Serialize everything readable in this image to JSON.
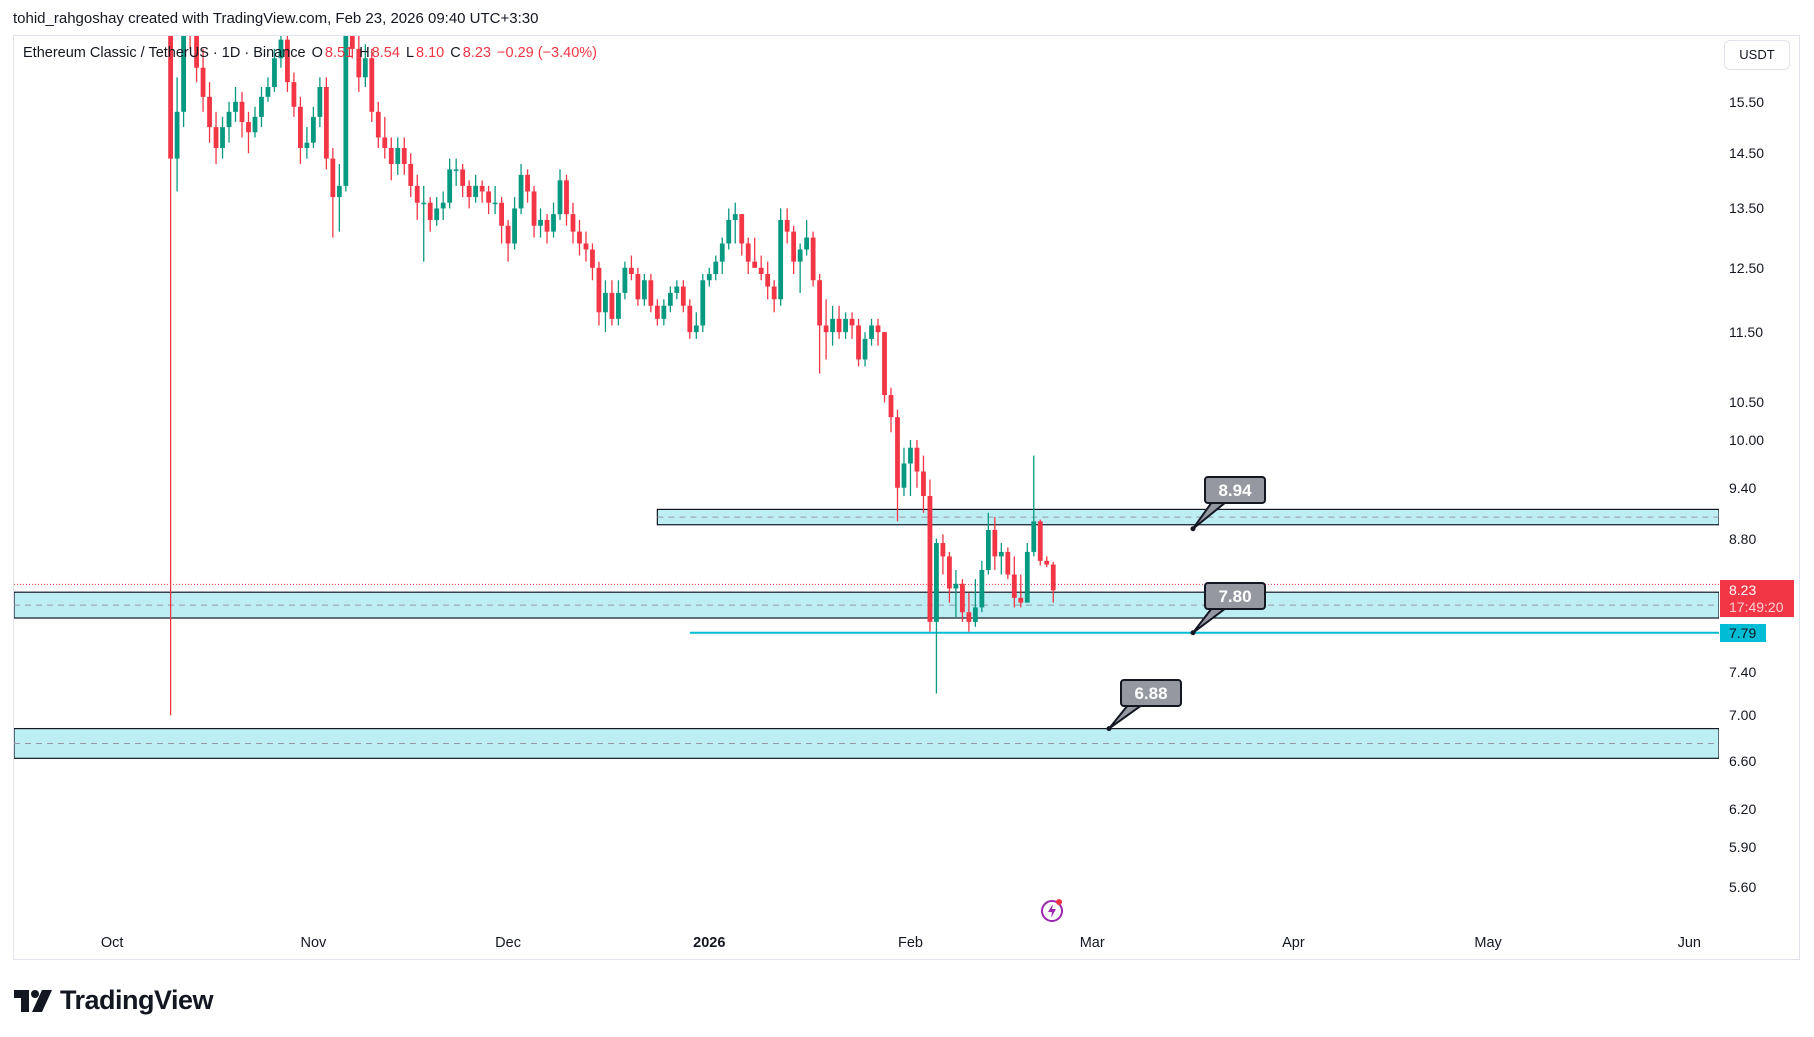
{
  "attribution": "tohid_rahgoshay created with TradingView.com, Feb 23, 2026 09:40 UTC+3:30",
  "legend": {
    "symbol": "Ethereum Classic / TetherUS · 1D · Binance",
    "o_label": "O",
    "o": "8.51",
    "h_label": "H",
    "h": "8.54",
    "l_label": "L",
    "l": "8.10",
    "c_label": "C",
    "c": "8.23",
    "change": "−0.29 (−3.40%)"
  },
  "currency_button": "USDT",
  "current_price": {
    "price": "8.23",
    "countdown": "17:49:20"
  },
  "level_label": "7.79",
  "logo_text": "TradingView",
  "colors": {
    "up": "#089981",
    "down": "#f23645",
    "zone_fill": "#b2ebf2",
    "level_line": "#00bcd4",
    "callout": "#9598a1"
  },
  "icons": [
    "flash-icon",
    "tradingview-logo-icon"
  ],
  "chart_data": {
    "type": "candlestick",
    "y_scale": "log",
    "ylim": [
      5.3,
      17.0
    ],
    "grid": false,
    "y_ticks": [
      "15.50",
      "14.50",
      "13.50",
      "12.50",
      "11.50",
      "10.50",
      "10.00",
      "9.40",
      "8.80",
      "7.40",
      "7.00",
      "6.60",
      "6.20",
      "5.90",
      "5.60"
    ],
    "x_ticks": [
      {
        "label": "Oct",
        "date": "2025-10-01",
        "bold": false
      },
      {
        "label": "Nov",
        "date": "2025-11-01",
        "bold": false
      },
      {
        "label": "Dec",
        "date": "2025-12-01",
        "bold": false
      },
      {
        "label": "2026",
        "date": "2026-01-01",
        "bold": true
      },
      {
        "label": "Feb",
        "date": "2026-02-01",
        "bold": false
      },
      {
        "label": "Mar",
        "date": "2026-03-01",
        "bold": false
      },
      {
        "label": "Apr",
        "date": "2026-04-01",
        "bold": false
      },
      {
        "label": "May",
        "date": "2026-05-01",
        "bold": false
      },
      {
        "label": "Jun",
        "date": "2026-06-01",
        "bold": false
      }
    ],
    "candles": [
      [
        "2025-10-10",
        19.0,
        19.6,
        7.0,
        14.4
      ],
      [
        "2025-10-11",
        14.4,
        16.0,
        13.8,
        15.3
      ],
      [
        "2025-10-12",
        15.3,
        17.6,
        15.0,
        17.2
      ],
      [
        "2025-10-13",
        17.2,
        17.8,
        16.6,
        17.0
      ],
      [
        "2025-10-14",
        17.0,
        17.3,
        15.9,
        16.2
      ],
      [
        "2025-10-15",
        16.2,
        16.6,
        15.3,
        15.6
      ],
      [
        "2025-10-16",
        15.6,
        15.9,
        14.7,
        15.0
      ],
      [
        "2025-10-17",
        15.0,
        15.3,
        14.3,
        14.6
      ],
      [
        "2025-10-18",
        14.6,
        15.2,
        14.4,
        15.0
      ],
      [
        "2025-10-19",
        15.0,
        15.5,
        14.7,
        15.3
      ],
      [
        "2025-10-20",
        15.3,
        15.8,
        15.1,
        15.5
      ],
      [
        "2025-10-21",
        15.5,
        15.7,
        14.8,
        15.1
      ],
      [
        "2025-10-22",
        15.1,
        15.3,
        14.5,
        14.9
      ],
      [
        "2025-10-23",
        14.9,
        15.4,
        14.8,
        15.2
      ],
      [
        "2025-10-24",
        15.2,
        15.8,
        15.0,
        15.6
      ],
      [
        "2025-10-25",
        15.6,
        16.0,
        15.5,
        15.8
      ],
      [
        "2025-10-26",
        15.8,
        16.6,
        15.7,
        16.4
      ],
      [
        "2025-10-27",
        16.4,
        17.1,
        16.2,
        16.8
      ],
      [
        "2025-10-28",
        16.8,
        17.0,
        15.7,
        15.9
      ],
      [
        "2025-10-29",
        15.9,
        16.1,
        15.2,
        15.4
      ],
      [
        "2025-10-30",
        15.4,
        15.6,
        14.3,
        14.6
      ],
      [
        "2025-10-31",
        14.6,
        15.0,
        14.4,
        14.7
      ],
      [
        "2025-11-01",
        14.7,
        15.4,
        14.6,
        15.2
      ],
      [
        "2025-11-02",
        15.2,
        16.0,
        15.0,
        15.8
      ],
      [
        "2025-11-03",
        15.8,
        16.0,
        14.2,
        14.4
      ],
      [
        "2025-11-04",
        14.4,
        14.6,
        13.0,
        13.7
      ],
      [
        "2025-11-05",
        13.7,
        14.3,
        13.1,
        13.9
      ],
      [
        "2025-11-06",
        13.9,
        17.6,
        13.8,
        17.3
      ],
      [
        "2025-11-07",
        17.3,
        17.8,
        16.4,
        16.6
      ],
      [
        "2025-11-08",
        16.6,
        16.9,
        15.7,
        16.0
      ],
      [
        "2025-11-09",
        16.0,
        16.7,
        15.8,
        16.4
      ],
      [
        "2025-11-10",
        16.4,
        16.6,
        15.1,
        15.3
      ],
      [
        "2025-11-11",
        15.3,
        15.5,
        14.6,
        14.8
      ],
      [
        "2025-11-12",
        14.8,
        15.2,
        14.4,
        14.6
      ],
      [
        "2025-11-13",
        14.6,
        14.8,
        14.0,
        14.3
      ],
      [
        "2025-11-14",
        14.3,
        14.8,
        14.1,
        14.6
      ],
      [
        "2025-11-15",
        14.6,
        14.8,
        14.1,
        14.3
      ],
      [
        "2025-11-16",
        14.3,
        14.5,
        13.7,
        13.9
      ],
      [
        "2025-11-17",
        13.9,
        14.1,
        13.3,
        13.6
      ],
      [
        "2025-11-18",
        13.6,
        13.9,
        12.6,
        13.6
      ],
      [
        "2025-11-19",
        13.6,
        13.7,
        13.1,
        13.3
      ],
      [
        "2025-11-20",
        13.3,
        13.7,
        13.2,
        13.5
      ],
      [
        "2025-11-21",
        13.5,
        13.8,
        13.3,
        13.6
      ],
      [
        "2025-11-22",
        13.6,
        14.4,
        13.5,
        14.2
      ],
      [
        "2025-11-23",
        14.2,
        14.4,
        13.9,
        14.2
      ],
      [
        "2025-11-24",
        14.2,
        14.3,
        13.7,
        13.9
      ],
      [
        "2025-11-25",
        13.9,
        14.0,
        13.5,
        13.7
      ],
      [
        "2025-11-26",
        13.7,
        14.1,
        13.6,
        13.9
      ],
      [
        "2025-11-27",
        13.9,
        14.0,
        13.6,
        13.8
      ],
      [
        "2025-11-28",
        13.8,
        13.9,
        13.4,
        13.6
      ],
      [
        "2025-11-29",
        13.6,
        13.9,
        13.4,
        13.6
      ],
      [
        "2025-11-30",
        13.6,
        13.7,
        12.9,
        13.2
      ],
      [
        "2025-12-01",
        13.2,
        13.3,
        12.6,
        12.9
      ],
      [
        "2025-12-02",
        12.9,
        13.7,
        12.8,
        13.5
      ],
      [
        "2025-12-03",
        13.5,
        14.3,
        13.4,
        14.1
      ],
      [
        "2025-12-04",
        14.1,
        14.2,
        13.6,
        13.8
      ],
      [
        "2025-12-05",
        13.8,
        13.9,
        13.0,
        13.2
      ],
      [
        "2025-12-06",
        13.2,
        13.5,
        13.0,
        13.3
      ],
      [
        "2025-12-07",
        13.3,
        13.4,
        12.9,
        13.1
      ],
      [
        "2025-12-08",
        13.1,
        13.6,
        13.0,
        13.4
      ],
      [
        "2025-12-09",
        13.4,
        14.2,
        13.3,
        14.0
      ],
      [
        "2025-12-10",
        14.0,
        14.1,
        13.2,
        13.4
      ],
      [
        "2025-12-11",
        13.4,
        13.6,
        12.9,
        13.1
      ],
      [
        "2025-12-12",
        13.1,
        13.3,
        12.7,
        12.9
      ],
      [
        "2025-12-13",
        12.9,
        13.1,
        12.6,
        12.8
      ],
      [
        "2025-12-14",
        12.8,
        12.9,
        12.3,
        12.5
      ],
      [
        "2025-12-15",
        12.5,
        12.6,
        11.6,
        11.8
      ],
      [
        "2025-12-16",
        11.8,
        12.3,
        11.5,
        12.1
      ],
      [
        "2025-12-17",
        12.1,
        12.3,
        11.6,
        11.7
      ],
      [
        "2025-12-18",
        11.7,
        12.3,
        11.6,
        12.1
      ],
      [
        "2025-12-19",
        12.1,
        12.6,
        12.0,
        12.5
      ],
      [
        "2025-12-20",
        12.5,
        12.7,
        12.3,
        12.4
      ],
      [
        "2025-12-21",
        12.4,
        12.5,
        11.9,
        12.0
      ],
      [
        "2025-12-22",
        12.0,
        12.4,
        11.9,
        12.3
      ],
      [
        "2025-12-23",
        12.3,
        12.4,
        11.8,
        11.9
      ],
      [
        "2025-12-24",
        11.9,
        12.0,
        11.6,
        11.7
      ],
      [
        "2025-12-25",
        11.7,
        12.0,
        11.6,
        11.9
      ],
      [
        "2025-12-26",
        11.9,
        12.2,
        11.8,
        12.1
      ],
      [
        "2025-12-27",
        12.1,
        12.3,
        12.0,
        12.2
      ],
      [
        "2025-12-28",
        12.2,
        12.3,
        11.8,
        11.9
      ],
      [
        "2025-12-29",
        11.9,
        12.0,
        11.4,
        11.5
      ],
      [
        "2025-12-30",
        11.5,
        11.8,
        11.4,
        11.6
      ],
      [
        "2025-12-31",
        11.6,
        12.4,
        11.5,
        12.3
      ],
      [
        "2026-01-01",
        12.3,
        12.5,
        12.2,
        12.4
      ],
      [
        "2026-01-02",
        12.4,
        12.7,
        12.3,
        12.6
      ],
      [
        "2026-01-03",
        12.6,
        13.0,
        12.4,
        12.9
      ],
      [
        "2026-01-04",
        12.9,
        13.5,
        12.8,
        13.3
      ],
      [
        "2026-01-05",
        13.3,
        13.6,
        12.9,
        13.4
      ],
      [
        "2026-01-06",
        13.4,
        13.4,
        12.7,
        12.9
      ],
      [
        "2026-01-07",
        12.9,
        13.0,
        12.4,
        12.6
      ],
      [
        "2026-01-08",
        12.6,
        13.0,
        12.5,
        12.5
      ],
      [
        "2026-01-09",
        12.5,
        12.7,
        12.3,
        12.4
      ],
      [
        "2026-01-10",
        12.4,
        12.6,
        12.0,
        12.2
      ],
      [
        "2026-01-11",
        12.2,
        12.3,
        11.8,
        12.0
      ],
      [
        "2026-01-12",
        12.0,
        13.5,
        11.9,
        13.3
      ],
      [
        "2026-01-13",
        13.3,
        13.5,
        12.9,
        13.1
      ],
      [
        "2026-01-14",
        13.1,
        13.2,
        12.4,
        12.6
      ],
      [
        "2026-01-15",
        12.6,
        12.9,
        12.1,
        12.8
      ],
      [
        "2026-01-16",
        12.8,
        13.3,
        12.7,
        13.0
      ],
      [
        "2026-01-17",
        13.0,
        13.1,
        12.2,
        12.3
      ],
      [
        "2026-01-18",
        12.3,
        12.4,
        10.9,
        11.6
      ],
      [
        "2026-01-19",
        11.6,
        12.0,
        11.1,
        11.5
      ],
      [
        "2026-01-20",
        11.5,
        11.9,
        11.3,
        11.7
      ],
      [
        "2026-01-21",
        11.7,
        11.9,
        11.4,
        11.5
      ],
      [
        "2026-01-22",
        11.5,
        11.8,
        11.4,
        11.7
      ],
      [
        "2026-01-23",
        11.7,
        11.8,
        11.4,
        11.6
      ],
      [
        "2026-01-24",
        11.6,
        11.7,
        11.0,
        11.1
      ],
      [
        "2026-01-25",
        11.1,
        11.5,
        11.0,
        11.4
      ],
      [
        "2026-01-26",
        11.4,
        11.7,
        11.3,
        11.6
      ],
      [
        "2026-01-27",
        11.6,
        11.7,
        11.3,
        11.5
      ],
      [
        "2026-01-28",
        11.5,
        11.5,
        10.5,
        10.6
      ],
      [
        "2026-01-29",
        10.6,
        10.7,
        10.1,
        10.3
      ],
      [
        "2026-01-30",
        10.3,
        10.4,
        9.0,
        9.4
      ],
      [
        "2026-01-31",
        9.4,
        9.9,
        9.3,
        9.7
      ],
      [
        "2026-02-01",
        9.7,
        10.0,
        9.3,
        9.9
      ],
      [
        "2026-02-02",
        9.9,
        10.0,
        9.4,
        9.6
      ],
      [
        "2026-02-03",
        9.6,
        9.8,
        9.1,
        9.3
      ],
      [
        "2026-02-04",
        9.3,
        9.5,
        7.8,
        7.9
      ],
      [
        "2026-02-05",
        7.9,
        8.8,
        7.2,
        8.75
      ],
      [
        "2026-02-06",
        8.75,
        8.85,
        8.4,
        8.6
      ],
      [
        "2026-02-07",
        8.6,
        8.65,
        8.1,
        8.25
      ],
      [
        "2026-02-08",
        8.25,
        8.45,
        7.95,
        8.3
      ],
      [
        "2026-02-09",
        8.3,
        8.35,
        7.9,
        8.0
      ],
      [
        "2026-02-10",
        8.0,
        8.2,
        7.8,
        7.9
      ],
      [
        "2026-02-11",
        7.9,
        8.35,
        7.85,
        8.05
      ],
      [
        "2026-02-12",
        8.05,
        8.55,
        8.0,
        8.45
      ],
      [
        "2026-02-13",
        8.45,
        9.1,
        8.4,
        8.9
      ],
      [
        "2026-02-14",
        8.9,
        9.05,
        8.45,
        8.6
      ],
      [
        "2026-02-15",
        8.6,
        8.75,
        8.4,
        8.65
      ],
      [
        "2026-02-16",
        8.65,
        8.7,
        8.35,
        8.4
      ],
      [
        "2026-02-17",
        8.4,
        8.6,
        8.05,
        8.15
      ],
      [
        "2026-02-18",
        8.15,
        8.4,
        8.05,
        8.1
      ],
      [
        "2026-02-19",
        8.1,
        8.75,
        8.1,
        8.65
      ],
      [
        "2026-02-20",
        8.65,
        9.8,
        8.6,
        9.0
      ],
      [
        "2026-02-21",
        9.0,
        9.02,
        8.5,
        8.55
      ],
      [
        "2026-02-22",
        8.55,
        8.6,
        8.48,
        8.51
      ],
      [
        "2026-02-23",
        8.51,
        8.54,
        8.1,
        8.23
      ]
    ],
    "zones": [
      {
        "label": "8.94",
        "low": 8.96,
        "high": 9.14,
        "from": "2025-12-24"
      },
      {
        "label": "7.80",
        "low": 7.94,
        "high": 8.21,
        "from": null
      },
      {
        "label": "6.88",
        "low": 6.62,
        "high": 6.88,
        "from": null
      }
    ],
    "horizontal_line": {
      "price": 7.79,
      "from": "2025-12-29"
    },
    "last_price": 8.23
  }
}
